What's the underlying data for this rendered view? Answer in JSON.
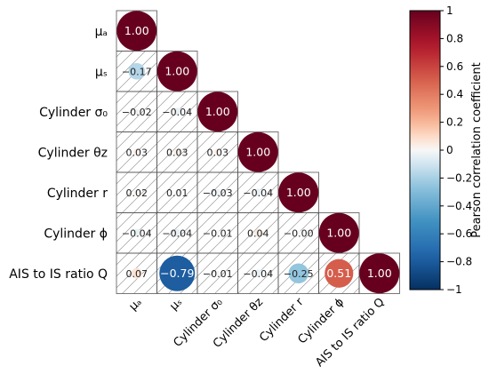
{
  "chart_data": {
    "type": "heatmap",
    "variables": [
      "μa",
      "μs",
      "Cylinder σ0",
      "Cylinder θz",
      "Cylinder r",
      "Cylinder φ",
      "AIS to IS ratio Q"
    ],
    "row_labels": [
      "μₐ",
      "μₛ",
      "Cylinder σ₀",
      "Cylinder θz",
      "Cylinder r",
      "Cylinder ϕ",
      "AIS to IS ratio Q"
    ],
    "col_labels": [
      "μₐ",
      "μₛ",
      "Cylinder σ₀",
      "Cylinder θz",
      "Cylinder r",
      "Cylinder ϕ",
      "AIS to IS ratio Q"
    ],
    "matrix": [
      [
        1.0
      ],
      [
        -0.17,
        1.0
      ],
      [
        -0.02,
        -0.04,
        1.0
      ],
      [
        0.03,
        0.03,
        0.03,
        1.0
      ],
      [
        0.02,
        0.01,
        -0.03,
        -0.04,
        1.0
      ],
      [
        -0.04,
        -0.04,
        -0.01,
        0.04,
        -0.0,
        1.0
      ],
      [
        0.07,
        -0.79,
        -0.01,
        -0.04,
        -0.25,
        0.51,
        1.0
      ]
    ],
    "labels": [
      [
        "1.00"
      ],
      [
        "−0.17",
        "1.00"
      ],
      [
        "−0.02",
        "−0.04",
        "1.00"
      ],
      [
        "0.03",
        "0.03",
        "0.03",
        "1.00"
      ],
      [
        "0.02",
        "0.01",
        "−0.03",
        "−0.04",
        "1.00"
      ],
      [
        "−0.04",
        "−0.04",
        "−0.01",
        "0.04",
        "−0.00",
        "1.00"
      ],
      [
        "0.07",
        "−0.79",
        "−0.01",
        "−0.04",
        "−0.25",
        "0.51",
        "1.00"
      ]
    ],
    "colorbar": {
      "label": "Pearson correlation coefficient",
      "range": [
        -1,
        1
      ],
      "ticks": [
        1,
        0.8,
        0.6,
        0.4,
        0.2,
        0,
        -0.2,
        -0.4,
        -0.6,
        -0.8,
        -1
      ],
      "tick_labels": [
        "1",
        "0.8",
        "0.6",
        "0.4",
        "0.2",
        "0",
        "−0.2",
        "−0.4",
        "−0.6",
        "−0.8",
        "−1"
      ],
      "colormap": "RdBu_r"
    },
    "title": "",
    "xlabel": "",
    "ylabel": ""
  }
}
